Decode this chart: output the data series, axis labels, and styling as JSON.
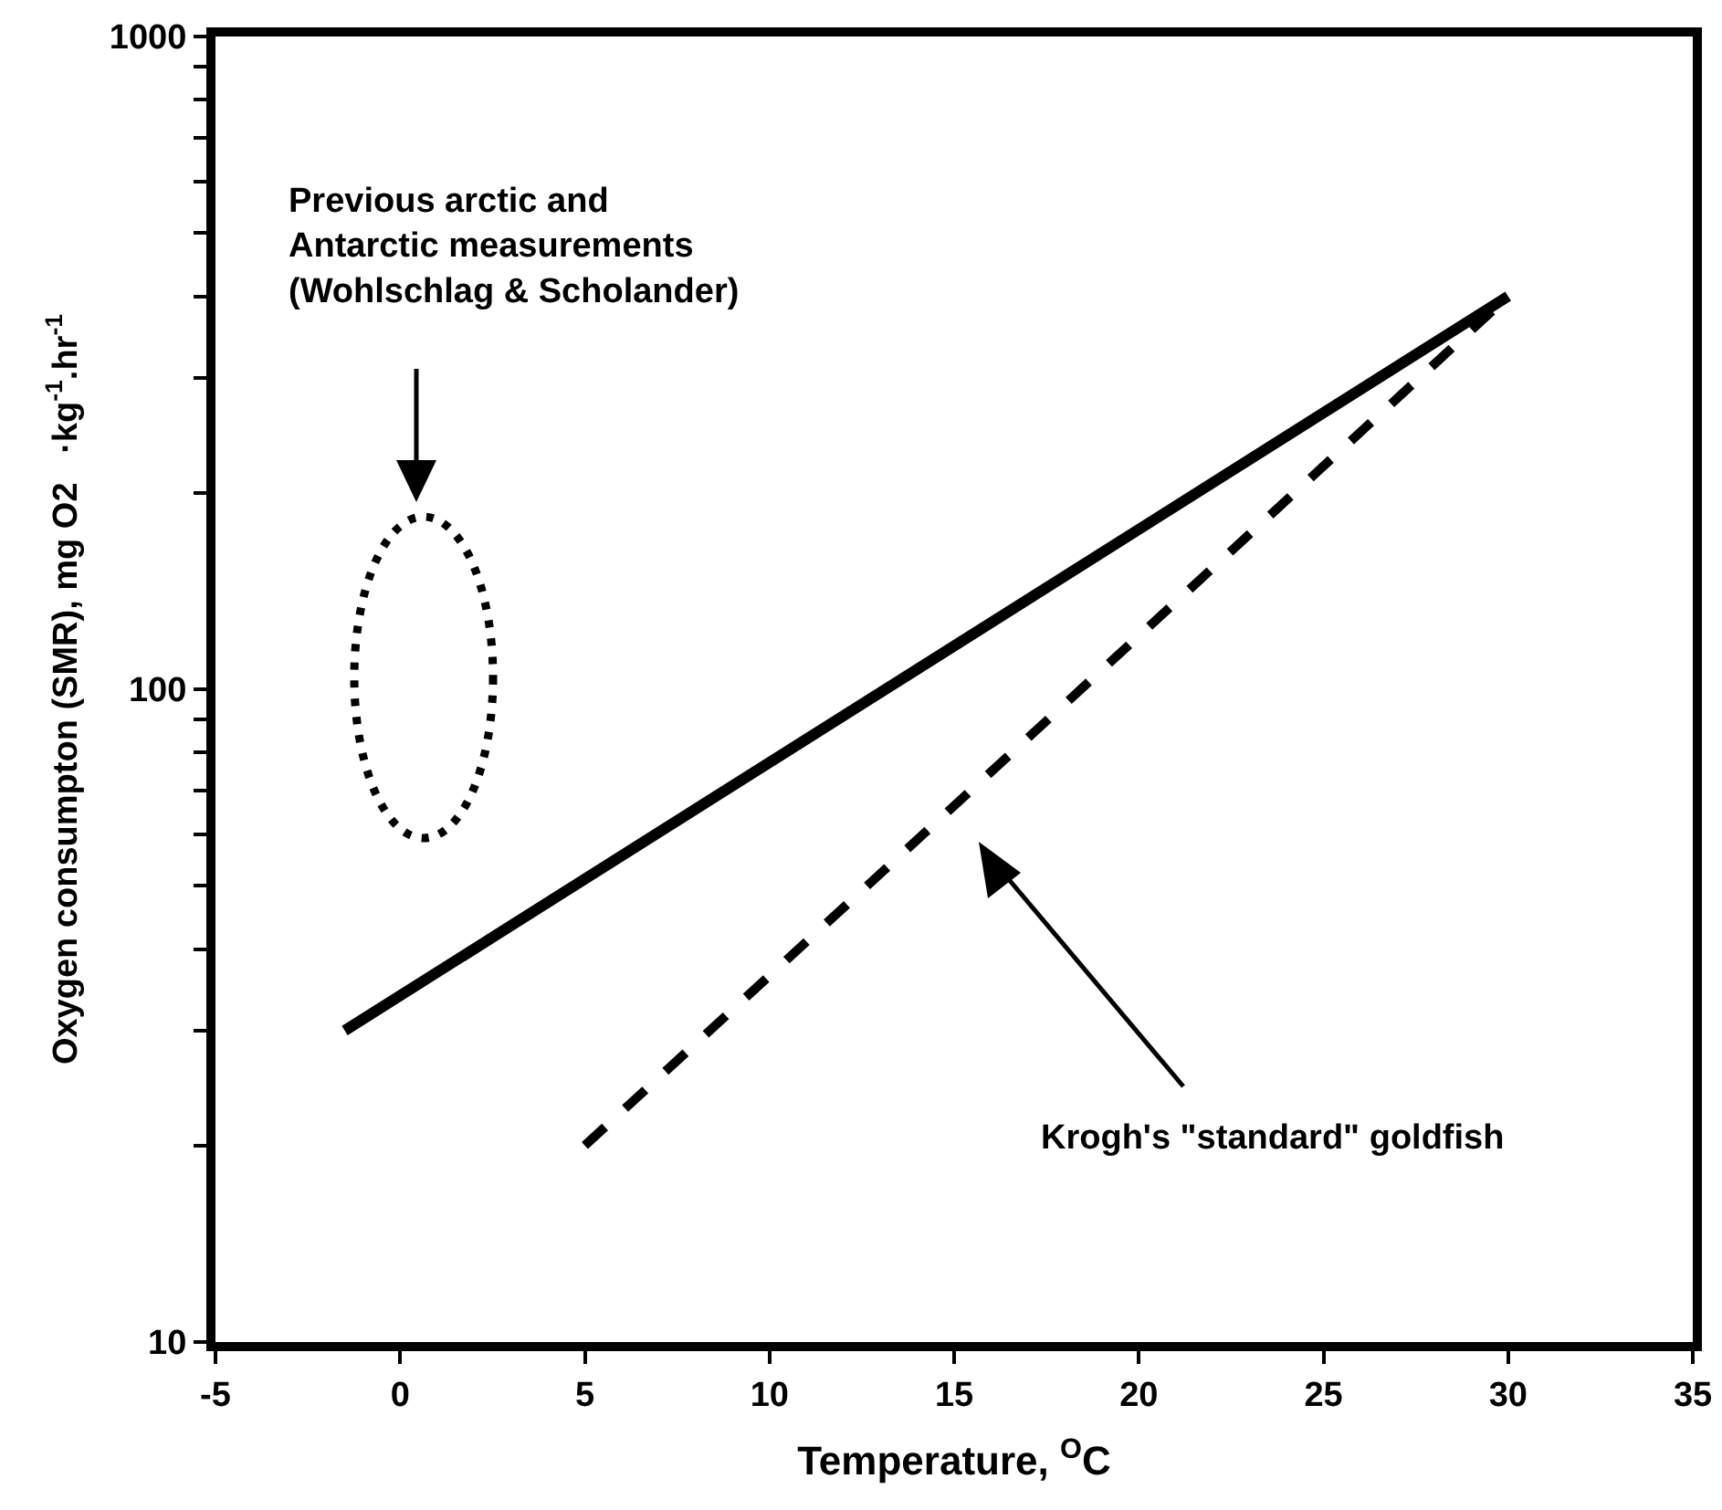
{
  "chart_data": {
    "type": "line",
    "xlabel": "Temperature, $^{O}$C",
    "ylabel": "Oxygen consumpton (SMR), mg O2   ·kg$^{-1}$.hr$^{-1}$",
    "series": [
      {
        "color": "#000000",
        "line_style": "solid",
        "x": [
          -1.5,
          30
        ],
        "values": [
          30,
          400
        ]
      },
      {
        "color": "#000000",
        "line_style": "dashed",
        "x": [
          5,
          30
        ],
        "values": [
          20,
          400
        ]
      }
    ],
    "xlim": [
      -5,
      35
    ],
    "xticks": [
      -5,
      0,
      5,
      10,
      15,
      20,
      25,
      30,
      35
    ],
    "ylim": [
      10,
      1000
    ],
    "log": "y",
    "yticks": [
      10,
      {
        "value": 20,
        "label": null
      },
      {
        "value": 30,
        "label": null
      },
      {
        "value": 40,
        "label": null
      },
      {
        "value": 50,
        "label": null
      },
      {
        "value": 60,
        "label": null
      },
      {
        "value": 70,
        "label": null
      },
      {
        "value": 80,
        "label": null
      },
      {
        "value": 90,
        "label": null
      },
      100,
      {
        "value": 200,
        "label": null
      },
      {
        "value": 300,
        "label": null
      },
      {
        "value": 400,
        "label": null
      },
      {
        "value": 500,
        "label": null
      },
      {
        "value": 600,
        "label": null
      },
      {
        "value": 700,
        "label": null
      },
      {
        "value": 800,
        "label": null
      },
      {
        "value": 900,
        "label": null
      },
      1000
    ],
    "grid": false,
    "marker": "none",
    "annotations": [
      "Previous arctic and\nAntarctic measurements\n(Wohlschlag & Scholander)",
      "Krogh's \"standard\" goldfish"
    ]
  }
}
